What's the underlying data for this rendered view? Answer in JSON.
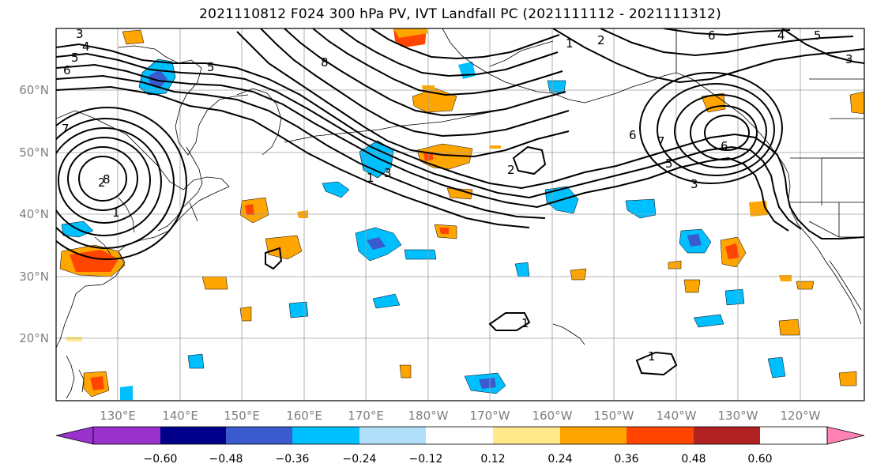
{
  "title": "2021110812 F024 300 hPa PV, IVT Landfall PC (2021111112 - 2021111312)",
  "lat_labels": [
    "60°N",
    "50°N",
    "40°N",
    "30°N",
    "20°N"
  ],
  "lon_labels": [
    "130°E",
    "140°E",
    "150°E",
    "160°E",
    "170°E",
    "180°W",
    "170°W",
    "160°W",
    "150°W",
    "140°W",
    "130°W",
    "120°W"
  ],
  "colorbar": {
    "colors": [
      "#9932cc",
      "#00008b",
      "#3a5bcd",
      "#00bfff",
      "#b0e0fa",
      "#ffffff",
      "#ffe98a",
      "#ffa500",
      "#ff4500",
      "#b22222",
      "#ff82b4"
    ],
    "tick_labels": [
      "−0.60",
      "−0.48",
      "−0.36",
      "−0.24",
      "−0.12",
      "0.12",
      "0.24",
      "0.36",
      "0.48",
      "0.60"
    ]
  },
  "contour_labels": [
    "3",
    "4",
    "5",
    "6",
    "7",
    "8",
    "2",
    "1",
    "8",
    "5",
    "1",
    "3",
    "2",
    "1",
    "2",
    "3",
    "6",
    "5",
    "4",
    "6",
    "5",
    "7",
    "6",
    "3",
    "1",
    "1"
  ]
}
